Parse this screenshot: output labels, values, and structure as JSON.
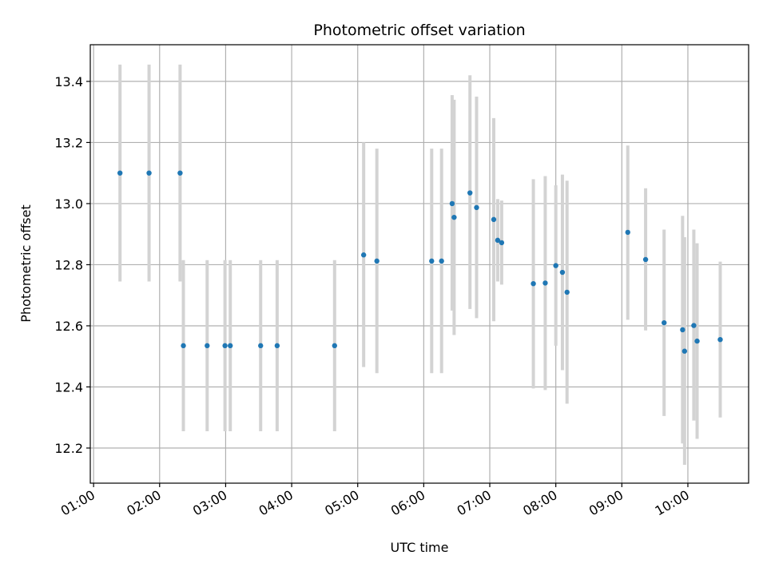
{
  "chart_data": {
    "type": "scatter",
    "title": "Photometric offset variation",
    "xlabel": "UTC time",
    "ylabel": "Photometric offset",
    "x_unit": "hours UTC",
    "xlim": [
      0.95,
      10.92
    ],
    "ylim": [
      12.085,
      13.52
    ],
    "x_ticks": [
      {
        "value": 1,
        "label": "01:00"
      },
      {
        "value": 2,
        "label": "02:00"
      },
      {
        "value": 3,
        "label": "03:00"
      },
      {
        "value": 4,
        "label": "04:00"
      },
      {
        "value": 5,
        "label": "05:00"
      },
      {
        "value": 6,
        "label": "06:00"
      },
      {
        "value": 7,
        "label": "07:00"
      },
      {
        "value": 8,
        "label": "08:00"
      },
      {
        "value": 9,
        "label": "09:00"
      },
      {
        "value": 10,
        "label": "10:00"
      }
    ],
    "y_ticks": [
      {
        "value": 12.2,
        "label": "12.2"
      },
      {
        "value": 12.4,
        "label": "12.4"
      },
      {
        "value": 12.6,
        "label": "12.6"
      },
      {
        "value": 12.8,
        "label": "12.8"
      },
      {
        "value": 13.0,
        "label": "13.0"
      },
      {
        "value": 13.2,
        "label": "13.2"
      },
      {
        "value": 13.4,
        "label": "13.4"
      }
    ],
    "grid": true,
    "marker_color": "#1f77b4",
    "errorbar_color": "#d3d3d3",
    "points": [
      {
        "x": 1.4,
        "y": 13.1,
        "low": 12.745,
        "high": 13.455
      },
      {
        "x": 1.84,
        "y": 13.1,
        "low": 12.745,
        "high": 13.455
      },
      {
        "x": 2.31,
        "y": 13.1,
        "low": 12.745,
        "high": 13.455
      },
      {
        "x": 2.36,
        "y": 12.535,
        "low": 12.255,
        "high": 12.815
      },
      {
        "x": 2.72,
        "y": 12.535,
        "low": 12.255,
        "high": 12.815
      },
      {
        "x": 2.99,
        "y": 12.535,
        "low": 12.255,
        "high": 12.815
      },
      {
        "x": 3.07,
        "y": 12.535,
        "low": 12.255,
        "high": 12.815
      },
      {
        "x": 3.53,
        "y": 12.535,
        "low": 12.255,
        "high": 12.815
      },
      {
        "x": 3.78,
        "y": 12.535,
        "low": 12.255,
        "high": 12.815
      },
      {
        "x": 4.65,
        "y": 12.535,
        "low": 12.255,
        "high": 12.815
      },
      {
        "x": 5.09,
        "y": 12.832,
        "low": 12.465,
        "high": 13.2
      },
      {
        "x": 5.29,
        "y": 12.812,
        "low": 12.445,
        "high": 13.18
      },
      {
        "x": 6.12,
        "y": 12.812,
        "low": 12.445,
        "high": 13.18
      },
      {
        "x": 6.27,
        "y": 12.812,
        "low": 12.445,
        "high": 13.18
      },
      {
        "x": 6.43,
        "y": 13.0,
        "low": 12.65,
        "high": 13.355
      },
      {
        "x": 6.46,
        "y": 12.955,
        "low": 12.57,
        "high": 13.34
      },
      {
        "x": 6.7,
        "y": 13.035,
        "low": 12.655,
        "high": 13.42
      },
      {
        "x": 6.8,
        "y": 12.987,
        "low": 12.625,
        "high": 13.35
      },
      {
        "x": 7.06,
        "y": 12.948,
        "low": 12.615,
        "high": 13.28
      },
      {
        "x": 7.12,
        "y": 12.88,
        "low": 12.745,
        "high": 13.015
      },
      {
        "x": 7.18,
        "y": 12.872,
        "low": 12.735,
        "high": 13.01
      },
      {
        "x": 7.66,
        "y": 12.738,
        "low": 12.395,
        "high": 13.08
      },
      {
        "x": 7.84,
        "y": 12.74,
        "low": 12.39,
        "high": 13.09
      },
      {
        "x": 8.0,
        "y": 12.797,
        "low": 12.535,
        "high": 13.06
      },
      {
        "x": 8.1,
        "y": 12.775,
        "low": 12.455,
        "high": 13.095
      },
      {
        "x": 8.17,
        "y": 12.71,
        "low": 12.345,
        "high": 13.075
      },
      {
        "x": 9.09,
        "y": 12.906,
        "low": 12.62,
        "high": 13.19
      },
      {
        "x": 9.36,
        "y": 12.817,
        "low": 12.585,
        "high": 13.05
      },
      {
        "x": 9.64,
        "y": 12.61,
        "low": 12.305,
        "high": 12.915
      },
      {
        "x": 9.92,
        "y": 12.587,
        "low": 12.215,
        "high": 12.96
      },
      {
        "x": 9.95,
        "y": 12.517,
        "low": 12.145,
        "high": 12.89
      },
      {
        "x": 10.09,
        "y": 12.601,
        "low": 12.29,
        "high": 12.915
      },
      {
        "x": 10.14,
        "y": 12.55,
        "low": 12.23,
        "high": 12.87
      },
      {
        "x": 10.49,
        "y": 12.555,
        "low": 12.3,
        "high": 12.81
      }
    ]
  }
}
